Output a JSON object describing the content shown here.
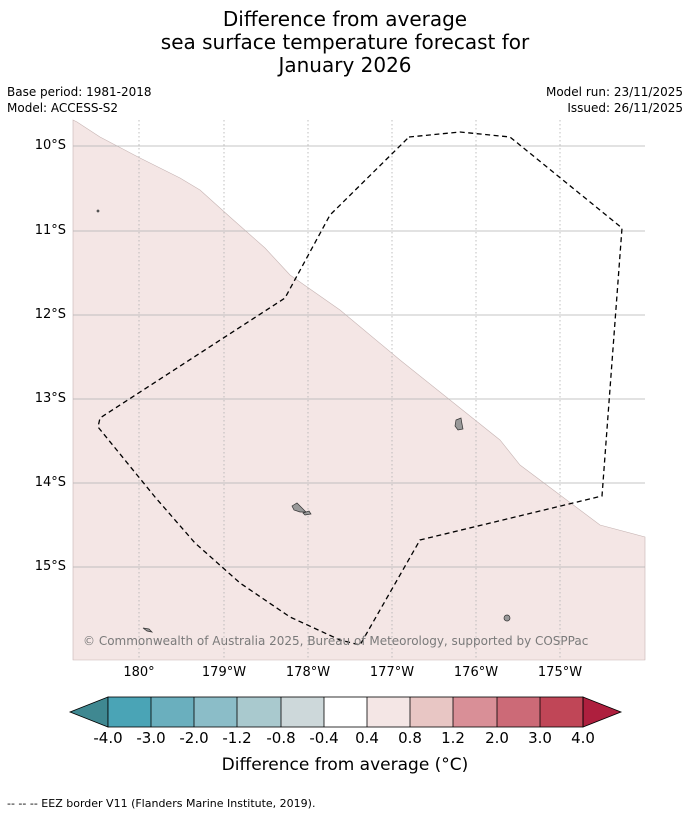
{
  "title": {
    "line1": "Difference from average",
    "line2": "sea surface temperature forecast for",
    "line3": "January 2026"
  },
  "meta": {
    "base_period": "Base period: 1981-2018",
    "model": "Model: ACCESS-S2",
    "model_run": "Model run: 23/11/2025",
    "issued": "Issued: 26/11/2025"
  },
  "map": {
    "lat_labels": [
      "10°S",
      "11°S",
      "12°S",
      "13°S",
      "14°S",
      "15°S"
    ],
    "lon_labels": [
      "180°",
      "179°W",
      "178°W",
      "177°W",
      "176°W",
      "175°W"
    ],
    "copyright": "© Commonwealth of Australia 2025, Bureau of Meteorology, supported by COSPPac",
    "colors": {
      "ocean_anomaly_0_4_to_0_8": "#f4e6e5",
      "land": "#999999",
      "grid": "#b0b0b0",
      "eez_border": "#000000"
    }
  },
  "colorbar": {
    "ticks": [
      "-4.0",
      "-3.0",
      "-2.0",
      "-1.2",
      "-0.8",
      "-0.4",
      "0.4",
      "0.8",
      "1.2",
      "2.0",
      "3.0",
      "4.0"
    ],
    "colors": [
      "#3f8891",
      "#4aa4b6",
      "#6aafbe",
      "#8bbdc8",
      "#a9c9ce",
      "#cdd8da",
      "#ffffff",
      "#f4e6e5",
      "#e8c6c4",
      "#d98f97",
      "#cc6a77",
      "#c04657",
      "#ae1f3e"
    ],
    "label": "Difference from average (°C)"
  },
  "footnote": "--  --  -- EEZ border V11 (Flanders Marine Institute, 2019)."
}
